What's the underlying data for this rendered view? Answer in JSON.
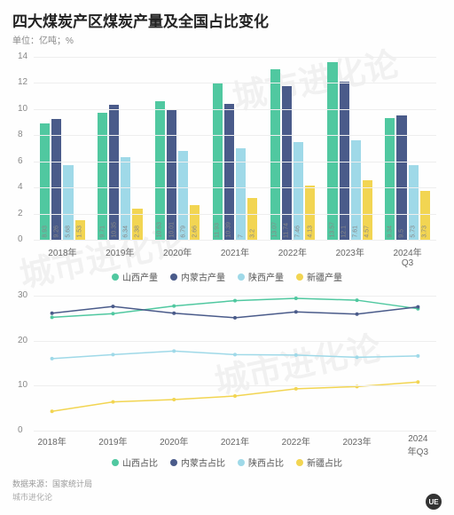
{
  "title": "四大煤炭产区煤炭产量及全国占比变化",
  "subtitle": "单位：亿吨；%",
  "source_label": "数据来源：国家统计局",
  "brand": "城市进化论",
  "logo_text": "UE",
  "watermark_text": "城市进化论",
  "bar_chart": {
    "type": "bar",
    "categories": [
      "2018年",
      "2019年",
      "2020年",
      "2021年",
      "2022年",
      "2023年",
      "2024年Q3"
    ],
    "series": [
      {
        "name": "山西产量",
        "color": "#50c8a0",
        "values": [
          8.93,
          9.71,
          10.63,
          11.93,
          13.07,
          13.57,
          9.34
        ]
      },
      {
        "name": "内蒙古产量",
        "color": "#4a5b8a",
        "values": [
          9.26,
          10.35,
          10.01,
          10.39,
          11.74,
          12.1,
          9.5
        ]
      },
      {
        "name": "陕西产量",
        "color": "#9fd9e8",
        "values": [
          5.68,
          6.34,
          6.79,
          7.0,
          7.46,
          7.61,
          5.73
        ]
      },
      {
        "name": "新疆产量",
        "color": "#f2d552",
        "values": [
          1.53,
          2.38,
          2.66,
          3.2,
          4.13,
          4.57,
          3.73
        ]
      }
    ],
    "ylim": [
      0,
      14
    ],
    "ytick_step": 2,
    "background": "#ffffff",
    "grid_color": "#eeeeee",
    "bar_group_width": 0.78,
    "bar_gap": 2
  },
  "line_chart": {
    "type": "line",
    "categories": [
      "2018年",
      "2019年",
      "2020年",
      "2021年",
      "2022年",
      "2023年",
      "2024年Q3"
    ],
    "series": [
      {
        "name": "山西占比",
        "color": "#50c8a0",
        "values": [
          25.2,
          26.0,
          27.7,
          28.9,
          29.4,
          29.0,
          27.1
        ]
      },
      {
        "name": "内蒙古占比",
        "color": "#4a5b8a",
        "values": [
          26.1,
          27.6,
          26.1,
          25.1,
          26.4,
          25.9,
          27.5
        ]
      },
      {
        "name": "陕西占比",
        "color": "#9fd9e8",
        "values": [
          16.0,
          16.9,
          17.7,
          16.9,
          16.8,
          16.3,
          16.6
        ]
      },
      {
        "name": "新疆占比",
        "color": "#f2d552",
        "values": [
          4.3,
          6.4,
          6.9,
          7.7,
          9.3,
          9.8,
          10.8
        ]
      }
    ],
    "ylim": [
      0,
      30
    ],
    "ytick_step": 10,
    "grid_color": "#eeeeee",
    "marker_size": 4,
    "line_width": 1.5
  },
  "fonts": {
    "title_size": 17,
    "axis_size": 10,
    "legend_size": 10
  }
}
